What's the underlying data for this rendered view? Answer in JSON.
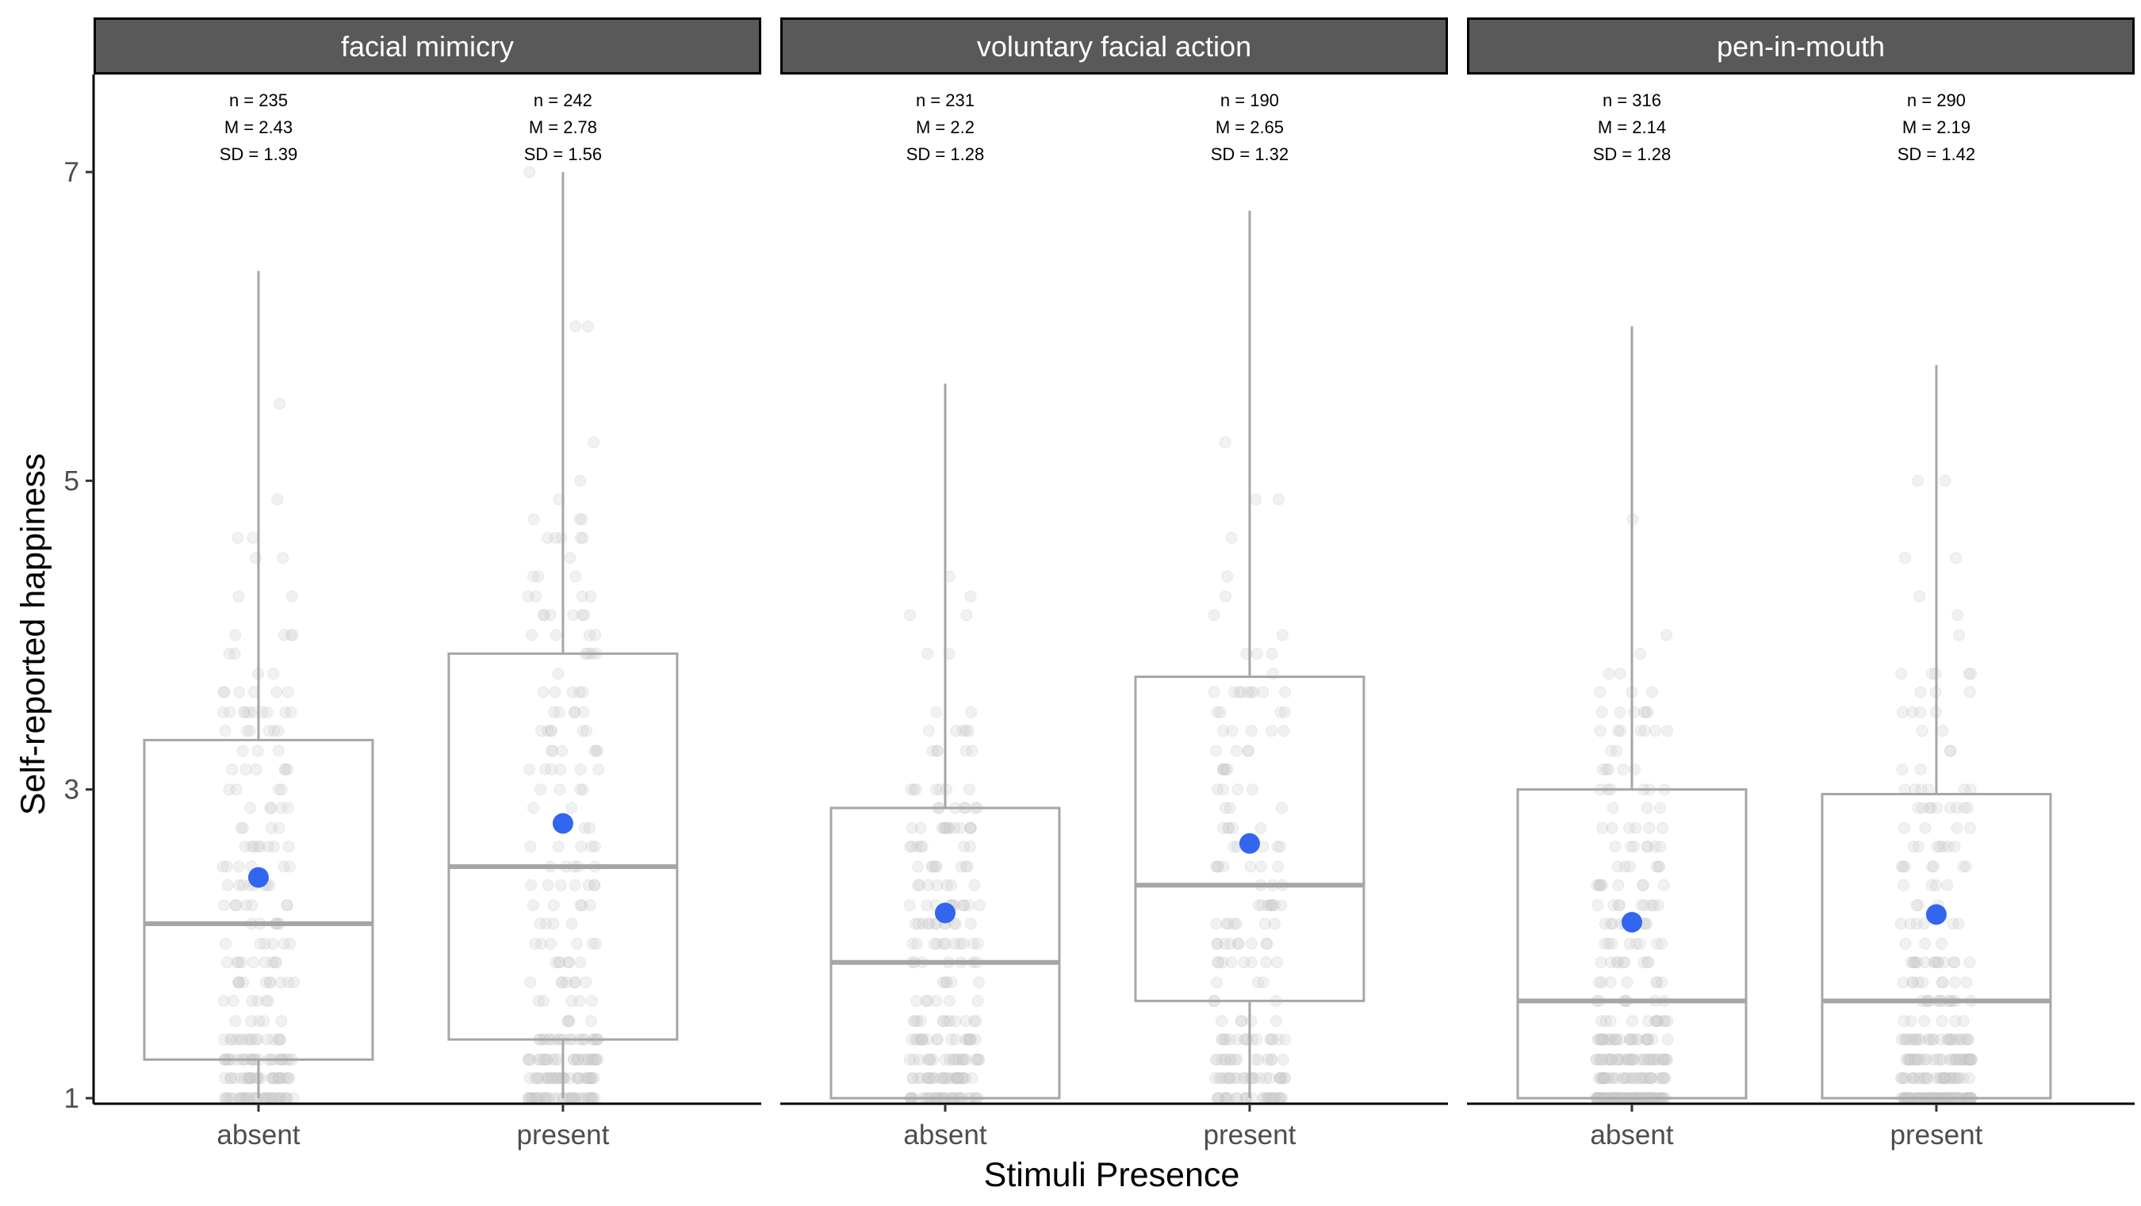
{
  "chart_data": {
    "type": "boxplot",
    "xlabel": "Stimuli Presence",
    "ylabel": "Self-reported happiness",
    "ylim": [
      1,
      7.6
    ],
    "yticks": [
      1,
      3,
      5,
      7
    ],
    "categories": [
      "absent",
      "present"
    ],
    "colors": {
      "strip": "#595959",
      "box": "#a6a6a6",
      "mean_point": "#3366ee",
      "jitter": "#cccccc",
      "axis": "#000000"
    },
    "panels": [
      {
        "title": "facial mimicry",
        "groups": [
          {
            "category": "absent",
            "n": 235,
            "mean": 2.43,
            "sd": 1.39,
            "n_label": "n = 235",
            "mean_label": "M = 2.43",
            "sd_label": "SD = 1.39",
            "q1": 1.25,
            "median": 2.13,
            "q3": 3.32,
            "whisker_low": 1.0,
            "whisker_high": 6.36
          },
          {
            "category": "present",
            "n": 242,
            "mean": 2.78,
            "sd": 1.56,
            "n_label": "n = 242",
            "mean_label": "M = 2.78",
            "sd_label": "SD = 1.56",
            "q1": 1.38,
            "median": 2.5,
            "q3": 3.88,
            "whisker_low": 1.0,
            "whisker_high": 7.0
          }
        ]
      },
      {
        "title": "voluntary facial action",
        "groups": [
          {
            "category": "absent",
            "n": 231,
            "mean": 2.2,
            "sd": 1.28,
            "n_label": "n = 231",
            "mean_label": "M = 2.2",
            "sd_label": "SD = 1.28",
            "q1": 1.0,
            "median": 1.88,
            "q3": 2.88,
            "whisker_low": 1.0,
            "whisker_high": 5.63
          },
          {
            "category": "present",
            "n": 190,
            "mean": 2.65,
            "sd": 1.32,
            "n_label": "n = 190",
            "mean_label": "M = 2.65",
            "sd_label": "SD = 1.32",
            "q1": 1.63,
            "median": 2.38,
            "q3": 3.73,
            "whisker_low": 1.0,
            "whisker_high": 6.75
          }
        ]
      },
      {
        "title": "pen-in-mouth",
        "groups": [
          {
            "category": "absent",
            "n": 316,
            "mean": 2.14,
            "sd": 1.28,
            "n_label": "n = 316",
            "mean_label": "M = 2.14",
            "sd_label": "SD = 1.28",
            "q1": 1.0,
            "median": 1.63,
            "q3": 3.0,
            "whisker_low": 1.0,
            "whisker_high": 6.0
          },
          {
            "category": "present",
            "n": 290,
            "mean": 2.19,
            "sd": 1.42,
            "n_label": "n = 290",
            "mean_label": "M = 2.19",
            "sd_label": "SD = 1.42",
            "q1": 1.0,
            "median": 1.63,
            "q3": 2.97,
            "whisker_low": 1.0,
            "whisker_high": 5.75
          }
        ]
      }
    ]
  }
}
